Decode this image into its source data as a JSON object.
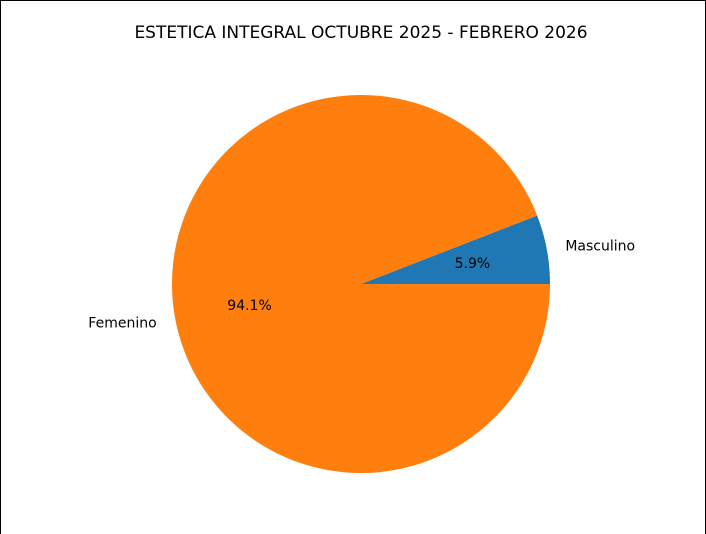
{
  "chart_data": {
    "type": "pie",
    "title": "ESTETICA INTEGRAL OCTUBRE 2025 - FEBRERO 2026",
    "slices": [
      {
        "label": "Masculino",
        "value": 5.9,
        "pct_label": "5.9%",
        "color": "#1f77b4"
      },
      {
        "label": "Femenino",
        "value": 94.1,
        "pct_label": "94.1%",
        "color": "#ff7f0e"
      }
    ]
  }
}
